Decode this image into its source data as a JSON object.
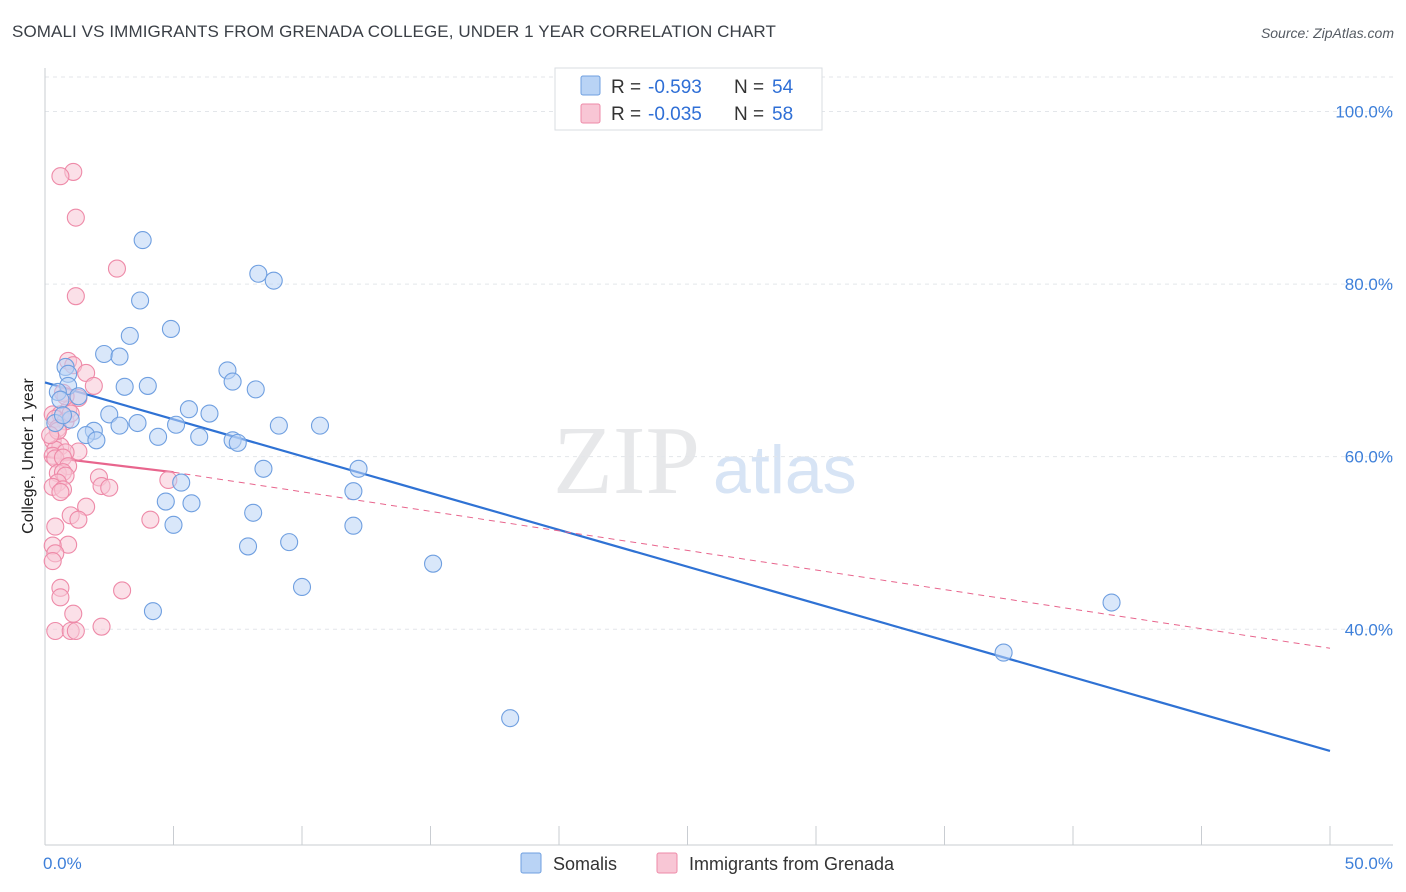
{
  "header": {
    "title": "SOMALI VS IMMIGRANTS FROM GRENADA COLLEGE, UNDER 1 YEAR CORRELATION CHART",
    "source": "Source: ZipAtlas.com"
  },
  "watermark": {
    "zip": "ZIP",
    "atlas": "atlas"
  },
  "colors": {
    "blue_fill": "#b9d3f5",
    "blue_stroke": "#6f9fe0",
    "blue_line": "#2f72d4",
    "pink_fill": "#f8c6d5",
    "pink_stroke": "#ee8aa8",
    "pink_line": "#e8658d",
    "grid": "#e3e6ea",
    "axis_text": "#3d7fd9"
  },
  "legend": {
    "rows": [
      {
        "r_label": "R = ",
        "r_value": "-0.593",
        "n_label": "N = ",
        "n_value": "54"
      },
      {
        "r_label": "R = ",
        "r_value": "-0.035",
        "n_label": "N = ",
        "n_value": "58"
      }
    ]
  },
  "bottom_legend": [
    "Somalis",
    "Immigrants from Grenada"
  ],
  "chart_data": {
    "type": "scatter",
    "title": "SOMALI VS IMMIGRANTS FROM GRENADA COLLEGE, UNDER 1 YEAR CORRELATION CHART",
    "xlabel": "",
    "ylabel": "College, Under 1 year",
    "xlim": [
      0,
      50
    ],
    "ylim": [
      15,
      104
    ],
    "x_tick_labels": [
      "0.0%",
      "50.0%"
    ],
    "y_ticks": [
      40,
      60,
      80,
      100
    ],
    "y_tick_labels": [
      "40.0%",
      "60.0%",
      "80.0%",
      "100.0%"
    ],
    "grid": true,
    "series": [
      {
        "name": "Somalis",
        "r": -0.593,
        "n": 54,
        "trend": {
          "x": [
            0,
            50
          ],
          "y": [
            68.6,
            25.9
          ],
          "style": "solid"
        },
        "points": [
          [
            3.8,
            85.1
          ],
          [
            8.3,
            81.2
          ],
          [
            8.9,
            80.4
          ],
          [
            3.7,
            78.1
          ],
          [
            4.9,
            74.8
          ],
          [
            3.3,
            74.0
          ],
          [
            2.3,
            71.9
          ],
          [
            2.9,
            71.6
          ],
          [
            0.8,
            70.4
          ],
          [
            0.9,
            69.6
          ],
          [
            7.1,
            70.0
          ],
          [
            7.3,
            68.7
          ],
          [
            3.1,
            68.1
          ],
          [
            4.0,
            68.2
          ],
          [
            8.2,
            67.8
          ],
          [
            0.9,
            68.2
          ],
          [
            0.5,
            67.5
          ],
          [
            1.3,
            67.0
          ],
          [
            0.6,
            66.6
          ],
          [
            5.6,
            65.5
          ],
          [
            6.4,
            65.0
          ],
          [
            2.5,
            64.9
          ],
          [
            1.0,
            64.3
          ],
          [
            0.4,
            63.9
          ],
          [
            3.6,
            63.9
          ],
          [
            5.1,
            63.7
          ],
          [
            9.1,
            63.6
          ],
          [
            10.7,
            63.6
          ],
          [
            2.9,
            63.6
          ],
          [
            1.9,
            63.0
          ],
          [
            1.6,
            62.5
          ],
          [
            4.4,
            62.3
          ],
          [
            6.0,
            62.3
          ],
          [
            7.3,
            61.9
          ],
          [
            7.5,
            61.6
          ],
          [
            2.0,
            61.9
          ],
          [
            8.5,
            58.6
          ],
          [
            12.2,
            58.6
          ],
          [
            5.3,
            57.0
          ],
          [
            12.0,
            56.0
          ],
          [
            4.7,
            54.8
          ],
          [
            5.7,
            54.6
          ],
          [
            8.1,
            53.5
          ],
          [
            5.0,
            52.1
          ],
          [
            12.0,
            52.0
          ],
          [
            9.5,
            50.1
          ],
          [
            7.9,
            49.6
          ],
          [
            15.1,
            47.6
          ],
          [
            10.0,
            44.9
          ],
          [
            4.2,
            42.1
          ],
          [
            41.5,
            43.1
          ],
          [
            37.3,
            37.3
          ],
          [
            18.1,
            29.7
          ],
          [
            0.7,
            64.8
          ]
        ]
      },
      {
        "name": "Immigrants from Grenada",
        "r": -0.035,
        "n": 58,
        "trend": {
          "x": [
            0,
            5
          ],
          "y": [
            60.0,
            58.2
          ],
          "style": "solid",
          "extended": {
            "x": [
              5,
              50
            ],
            "y": [
              58.2,
              37.8
            ],
            "style": "dashed"
          }
        },
        "points": [
          [
            1.1,
            93.0
          ],
          [
            0.6,
            92.5
          ],
          [
            1.2,
            87.7
          ],
          [
            2.8,
            81.8
          ],
          [
            1.2,
            78.6
          ],
          [
            0.9,
            71.1
          ],
          [
            1.1,
            70.6
          ],
          [
            1.6,
            69.7
          ],
          [
            1.9,
            68.2
          ],
          [
            0.7,
            67.4
          ],
          [
            1.3,
            66.8
          ],
          [
            0.9,
            65.4
          ],
          [
            0.3,
            64.9
          ],
          [
            0.6,
            64.9
          ],
          [
            0.4,
            64.4
          ],
          [
            0.8,
            64.1
          ],
          [
            0.5,
            63.3
          ],
          [
            0.3,
            61.9
          ],
          [
            0.6,
            61.2
          ],
          [
            0.4,
            60.8
          ],
          [
            1.3,
            60.6
          ],
          [
            0.8,
            60.5
          ],
          [
            0.3,
            60.1
          ],
          [
            0.4,
            59.8
          ],
          [
            0.7,
            59.9
          ],
          [
            0.9,
            58.9
          ],
          [
            0.5,
            58.1
          ],
          [
            0.7,
            58.2
          ],
          [
            0.8,
            57.8
          ],
          [
            2.1,
            57.6
          ],
          [
            4.8,
            57.3
          ],
          [
            0.5,
            57.0
          ],
          [
            0.3,
            56.5
          ],
          [
            2.2,
            56.6
          ],
          [
            2.5,
            56.4
          ],
          [
            0.7,
            56.2
          ],
          [
            0.6,
            55.9
          ],
          [
            1.6,
            54.2
          ],
          [
            1.0,
            53.2
          ],
          [
            1.3,
            52.7
          ],
          [
            4.1,
            52.7
          ],
          [
            0.4,
            51.9
          ],
          [
            0.9,
            49.8
          ],
          [
            0.3,
            49.7
          ],
          [
            0.4,
            48.8
          ],
          [
            0.3,
            47.9
          ],
          [
            0.6,
            44.8
          ],
          [
            3.0,
            44.5
          ],
          [
            0.6,
            43.7
          ],
          [
            1.1,
            41.8
          ],
          [
            2.2,
            40.3
          ],
          [
            0.4,
            39.8
          ],
          [
            1.0,
            39.8
          ],
          [
            1.2,
            39.8
          ],
          [
            0.5,
            63.0
          ],
          [
            1.0,
            65.0
          ],
          [
            0.8,
            67.0
          ],
          [
            0.2,
            62.5
          ]
        ]
      }
    ]
  }
}
